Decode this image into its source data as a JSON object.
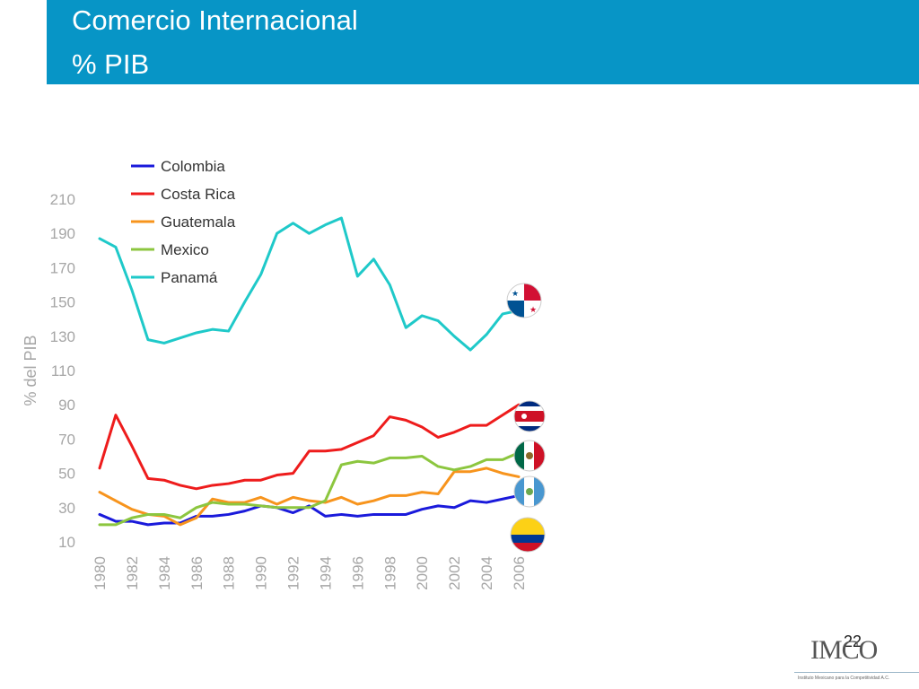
{
  "header": {
    "title_line1": "Comercio Internacional",
    "title_line2": "% PIB",
    "background_color": "#0795c6"
  },
  "page_number": "22",
  "logo": {
    "text": "IMCO",
    "subtitle": "Instituto Mexicano para la Competitividad A.C."
  },
  "flags": [
    "panama-flag-icon",
    "costa-rica-flag-icon",
    "mexico-flag-icon",
    "guatemala-flag-icon",
    "colombia-flag-icon"
  ],
  "chart_data": {
    "type": "line",
    "title": "",
    "xlabel": "",
    "ylabel": "% del PIB",
    "ylim": [
      10,
      210
    ],
    "y_ticks": [
      10,
      30,
      50,
      70,
      90,
      110,
      130,
      150,
      170,
      190,
      210
    ],
    "x_tick_labels": [
      "1980",
      "1982",
      "1984",
      "1986",
      "1988",
      "1990",
      "1992",
      "1994",
      "1996",
      "1998",
      "2000",
      "2002",
      "2004",
      "2006"
    ],
    "x": [
      1980,
      1981,
      1982,
      1983,
      1984,
      1985,
      1986,
      1987,
      1988,
      1989,
      1990,
      1991,
      1992,
      1993,
      1994,
      1995,
      1996,
      1997,
      1998,
      1999,
      2000,
      2001,
      2002,
      2003,
      2004,
      2005,
      2006
    ],
    "legend_position": "top-left",
    "grid": false,
    "series": [
      {
        "name": "Colombia",
        "color": "#1a1adb",
        "values": [
          26,
          22,
          22,
          20,
          21,
          21,
          25,
          25,
          26,
          28,
          31,
          30,
          27,
          31,
          25,
          26,
          25,
          26,
          26,
          26,
          29,
          31,
          30,
          34,
          33,
          35,
          37
        ]
      },
      {
        "name": "Costa Rica",
        "color": "#ee1c1c",
        "values": [
          53,
          84,
          66,
          47,
          46,
          43,
          41,
          43,
          44,
          46,
          46,
          49,
          50,
          63,
          63,
          64,
          68,
          72,
          83,
          81,
          77,
          71,
          74,
          78,
          78,
          84,
          90
        ]
      },
      {
        "name": "Guatemala",
        "color": "#f7941d",
        "values": [
          39,
          34,
          29,
          26,
          25,
          20,
          24,
          35,
          33,
          33,
          36,
          32,
          36,
          34,
          33,
          36,
          32,
          34,
          37,
          37,
          39,
          38,
          51,
          51,
          53,
          50,
          48
        ]
      },
      {
        "name": "Mexico",
        "color": "#8cc63f",
        "values": [
          20,
          20,
          24,
          26,
          26,
          24,
          30,
          33,
          32,
          32,
          31,
          30,
          30,
          30,
          34,
          55,
          57,
          56,
          59,
          59,
          60,
          54,
          52,
          54,
          58,
          58,
          62
        ]
      },
      {
        "name": "Panamá",
        "color": "#1fc9c9",
        "values": [
          187,
          182,
          157,
          128,
          126,
          129,
          132,
          134,
          133,
          150,
          166,
          190,
          196,
          190,
          195,
          199,
          165,
          175,
          160,
          135,
          142,
          139,
          130,
          122,
          131,
          143,
          145
        ]
      }
    ]
  }
}
